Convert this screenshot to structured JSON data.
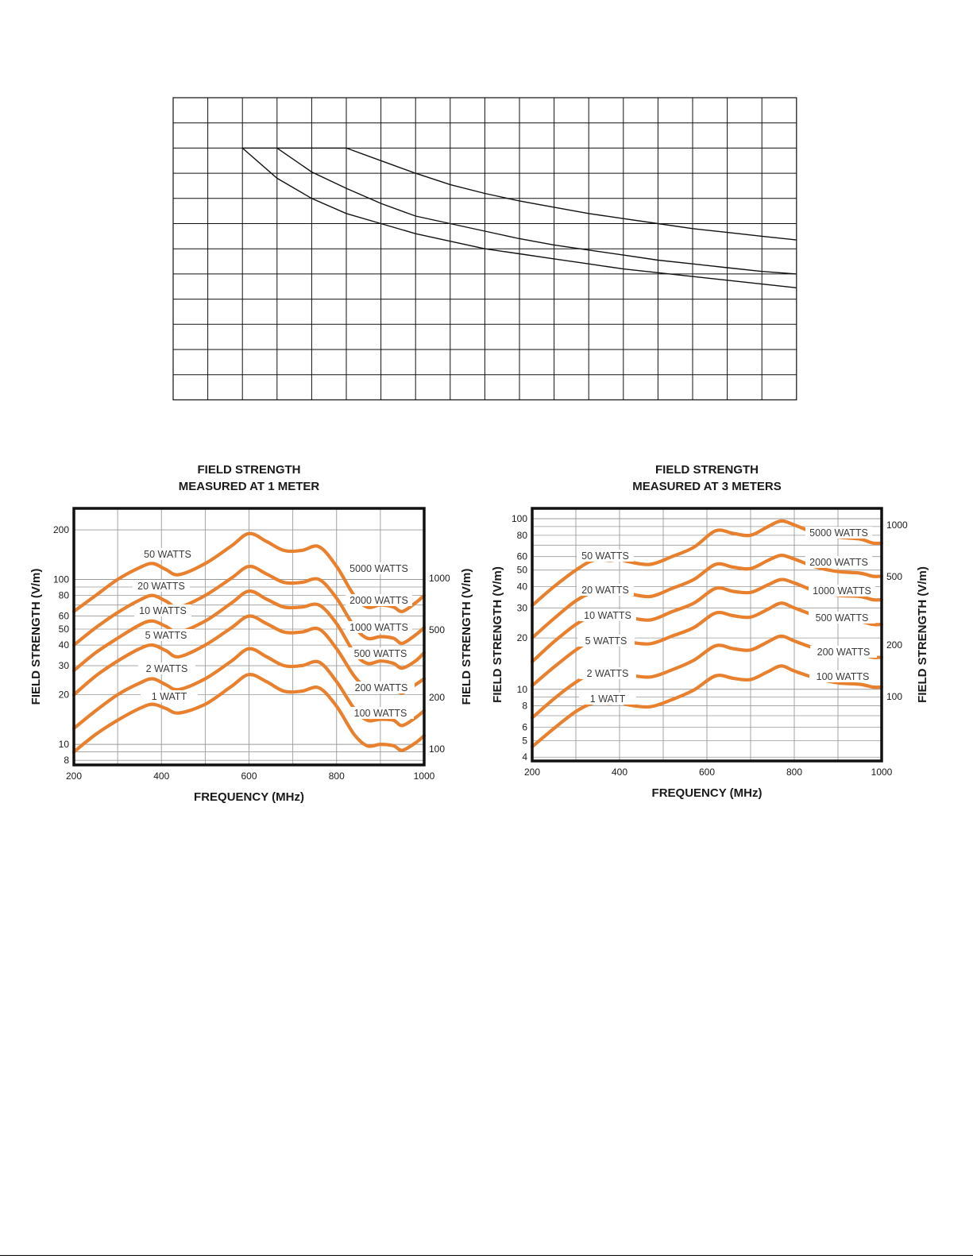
{
  "chart_data": [
    {
      "type": "line",
      "title": "",
      "xlabel": "",
      "ylabel": "",
      "grid": true,
      "grid_columns": 18,
      "grid_rows": 12,
      "x_unit": "grid columns",
      "y_unit": "grid rows (from top)",
      "series": [
        {
          "points": [
            [
              2,
              2
            ],
            [
              3,
              3.2
            ],
            [
              4,
              4
            ],
            [
              5,
              4.6
            ],
            [
              6,
              5
            ],
            [
              7,
              5.4
            ],
            [
              8,
              5.7
            ],
            [
              9,
              6
            ],
            [
              10,
              6.2
            ],
            [
              11,
              6.4
            ],
            [
              12,
              6.6
            ],
            [
              13,
              6.8
            ],
            [
              14,
              6.95
            ],
            [
              15,
              7.1
            ],
            [
              16,
              7.25
            ],
            [
              17,
              7.4
            ],
            [
              18,
              7.55
            ]
          ]
        },
        {
          "points": [
            [
              3,
              2
            ],
            [
              4,
              2.95
            ],
            [
              5,
              3.6
            ],
            [
              6,
              4.2
            ],
            [
              7,
              4.7
            ],
            [
              8,
              5
            ],
            [
              9,
              5.3
            ],
            [
              10,
              5.6
            ],
            [
              11,
              5.85
            ],
            [
              12,
              6.05
            ],
            [
              13,
              6.25
            ],
            [
              14,
              6.45
            ],
            [
              15,
              6.6
            ],
            [
              16,
              6.75
            ],
            [
              17,
              6.9
            ],
            [
              18,
              7
            ]
          ]
        },
        {
          "points": [
            [
              5,
              2
            ],
            [
              6,
              2.5
            ],
            [
              7,
              3.0
            ],
            [
              8,
              3.45
            ],
            [
              9,
              3.8
            ],
            [
              10,
              4.1
            ],
            [
              11,
              4.35
            ],
            [
              12,
              4.6
            ],
            [
              13,
              4.8
            ],
            [
              14,
              5.0
            ],
            [
              15,
              5.2
            ],
            [
              16,
              5.35
            ],
            [
              17,
              5.5
            ],
            [
              18,
              5.65
            ]
          ]
        }
      ]
    },
    {
      "type": "line",
      "title": "FIELD STRENGTH",
      "subtitle": "MEASURED AT 1 METER",
      "xlabel": "FREQUENCY (MHz)",
      "ylabel": "FIELD STRENGTH  (V/m)",
      "ylabel_right": "FIELD STRENGTH  (V/m)",
      "xlim": [
        200,
        1000
      ],
      "ylim": [
        7.5,
        270
      ],
      "y_scale": "log",
      "x_ticks": [
        "200",
        "400",
        "600",
        "800",
        "1000"
      ],
      "y_ticks": [
        "200",
        "100",
        "80",
        "60",
        "50",
        "40",
        "30",
        "20",
        "10",
        "8"
      ],
      "y_ticks_right": [
        "1000",
        "500",
        "200",
        "100"
      ],
      "line_color": "#e8802e",
      "series": [
        {
          "name": "50 WATTS",
          "label_x": 0,
          "x": [
            200,
            250,
            300,
            350,
            380,
            410,
            440,
            500,
            560,
            600,
            640,
            680,
            720,
            760,
            800,
            840,
            870,
            900,
            930,
            950,
            980,
            1000
          ],
          "y": [
            64,
            80,
            100,
            118,
            125,
            115,
            107,
            125,
            160,
            190,
            170,
            150,
            150,
            158,
            120,
            80,
            68,
            70,
            68,
            64,
            72,
            80
          ]
        },
        {
          "name": "20 WATTS",
          "label_x": 0,
          "x": [
            200,
            250,
            300,
            350,
            380,
            410,
            440,
            500,
            560,
            600,
            640,
            680,
            720,
            760,
            800,
            840,
            870,
            900,
            930,
            950,
            980,
            1000
          ],
          "y": [
            40,
            51,
            63,
            75,
            80,
            74,
            68,
            80,
            102,
            120,
            108,
            96,
            96,
            100,
            77,
            52,
            44,
            45,
            44,
            41,
            46,
            51
          ]
        },
        {
          "name": "10 WATTS",
          "label_x": 0,
          "x": [
            200,
            250,
            300,
            350,
            380,
            410,
            440,
            500,
            560,
            600,
            640,
            680,
            720,
            760,
            800,
            840,
            870,
            900,
            930,
            950,
            980,
            1000
          ],
          "y": [
            28,
            36,
            44,
            53,
            56,
            52,
            48,
            56,
            72,
            85,
            76,
            68,
            68,
            70,
            54,
            36,
            31,
            32,
            31,
            29,
            32,
            36
          ]
        },
        {
          "name": "5 WATTS",
          "label_x": 0,
          "x": [
            200,
            250,
            300,
            350,
            380,
            410,
            440,
            500,
            560,
            600,
            640,
            680,
            720,
            760,
            800,
            840,
            870,
            900,
            930,
            950,
            980,
            1000
          ],
          "y": [
            20,
            26,
            32,
            38,
            40,
            37,
            34,
            40,
            51,
            60,
            54,
            48,
            48,
            50,
            38,
            26,
            22,
            22.5,
            22,
            20.5,
            23,
            25
          ]
        },
        {
          "name": "2 WATTS",
          "label_x": 0,
          "x": [
            200,
            250,
            300,
            350,
            380,
            410,
            440,
            500,
            560,
            600,
            640,
            680,
            720,
            760,
            800,
            840,
            870,
            900,
            930,
            950,
            980,
            1000
          ],
          "y": [
            12.5,
            16,
            20,
            23.5,
            25,
            23,
            21.5,
            25,
            32,
            38,
            34,
            30,
            30,
            31.5,
            24,
            16.5,
            14,
            14.2,
            14,
            13,
            14.5,
            16
          ]
        },
        {
          "name": "1 WATT",
          "label_x": 0,
          "x": [
            200,
            250,
            300,
            350,
            380,
            410,
            440,
            500,
            560,
            600,
            640,
            680,
            720,
            760,
            800,
            840,
            870,
            900,
            930,
            950,
            980,
            1000
          ],
          "y": [
            9,
            11.5,
            14,
            16.5,
            17.5,
            16.5,
            15.5,
            17.5,
            22.5,
            26.5,
            24,
            21,
            21,
            22,
            17,
            11.5,
            9.8,
            10,
            9.8,
            9.2,
            10.2,
            11.3
          ]
        }
      ],
      "right_labels": [
        "5000 WATTS",
        "2000 WATTS",
        "1000 WATTS",
        "500 WATTS",
        "200 WATTS",
        "100 WATTS"
      ]
    },
    {
      "type": "line",
      "title": "FIELD STRENGTH",
      "subtitle": "MEASURED AT 3 METERS",
      "xlabel": "FREQUENCY (MHz)",
      "ylabel": "FIELD STRENGTH (V/m)",
      "ylabel_right": "FIELD STRENGTH (V/m)",
      "xlim": [
        200,
        1000
      ],
      "ylim": [
        3.8,
        115
      ],
      "y_scale": "log",
      "x_ticks": [
        "200",
        "400",
        "600",
        "800",
        "1000"
      ],
      "y_ticks": [
        "100",
        "80",
        "60",
        "50",
        "40",
        "30",
        "20",
        "10",
        "8",
        "6",
        "5",
        "4"
      ],
      "y_ticks_right": [
        "1000",
        "500",
        "200",
        "100"
      ],
      "line_color": "#e8802e",
      "series": [
        {
          "name": "50 WATTS",
          "x": [
            200,
            250,
            300,
            340,
            380,
            400,
            420,
            470,
            520,
            570,
            620,
            660,
            700,
            740,
            770,
            800,
            850,
            900,
            950,
            980,
            1000
          ],
          "y": [
            31,
            40,
            50,
            57,
            57,
            58,
            56,
            54,
            60,
            68,
            85,
            82,
            80,
            90,
            97,
            92,
            82,
            78,
            76,
            72,
            72
          ]
        },
        {
          "name": "20 WATTS",
          "x": [
            200,
            250,
            300,
            340,
            380,
            400,
            420,
            470,
            520,
            570,
            620,
            660,
            700,
            740,
            770,
            800,
            850,
            900,
            950,
            980,
            1000
          ],
          "y": [
            20,
            26,
            33,
            37,
            37,
            37.5,
            36.5,
            35,
            39,
            44,
            54,
            52,
            51,
            57,
            61,
            58,
            52,
            49,
            48,
            46,
            46
          ]
        },
        {
          "name": "10 WATTS",
          "x": [
            200,
            250,
            300,
            340,
            380,
            400,
            420,
            470,
            520,
            570,
            620,
            660,
            700,
            740,
            770,
            800,
            850,
            900,
            950,
            980,
            1000
          ],
          "y": [
            14.5,
            19,
            24,
            27,
            27,
            27.5,
            26.5,
            25.5,
            28.5,
            32,
            39,
            37.5,
            37,
            41,
            44,
            42,
            37.5,
            35.5,
            35,
            33.5,
            33.5
          ]
        },
        {
          "name": "5 WATTS",
          "x": [
            200,
            250,
            300,
            340,
            380,
            400,
            420,
            470,
            520,
            570,
            620,
            660,
            700,
            740,
            770,
            800,
            850,
            900,
            950,
            980,
            1000
          ],
          "y": [
            10.5,
            13.5,
            17,
            19.5,
            19.5,
            20,
            19,
            18.5,
            20.5,
            23,
            28,
            27,
            26.5,
            29.5,
            32,
            30,
            27,
            25.5,
            25,
            24,
            24
          ]
        },
        {
          "name": "2 WATTS",
          "x": [
            200,
            250,
            300,
            340,
            380,
            400,
            420,
            470,
            520,
            570,
            620,
            660,
            700,
            740,
            770,
            800,
            850,
            900,
            950,
            980,
            1000
          ],
          "y": [
            6.8,
            8.8,
            11,
            12.5,
            12.5,
            12.8,
            12.2,
            11.8,
            13,
            14.8,
            18,
            17.3,
            17,
            19,
            20.5,
            19.2,
            17.3,
            16.3,
            16,
            15.4,
            15.4
          ]
        },
        {
          "name": "1 WATT",
          "x": [
            200,
            250,
            300,
            340,
            380,
            400,
            420,
            470,
            520,
            570,
            620,
            660,
            700,
            740,
            770,
            800,
            850,
            900,
            950,
            980,
            1000
          ],
          "y": [
            4.6,
            5.9,
            7.4,
            8.3,
            8.3,
            8.5,
            8.1,
            7.9,
            8.7,
            9.9,
            12,
            11.6,
            11.4,
            12.7,
            13.7,
            12.8,
            11.6,
            10.9,
            10.7,
            10.3,
            10.3
          ]
        }
      ],
      "right_labels": [
        "5000 WATTS",
        "2000 WATTS",
        "1000 WATTS",
        "500 WATTS",
        "200 WATTS",
        "100 WATTS"
      ]
    }
  ]
}
